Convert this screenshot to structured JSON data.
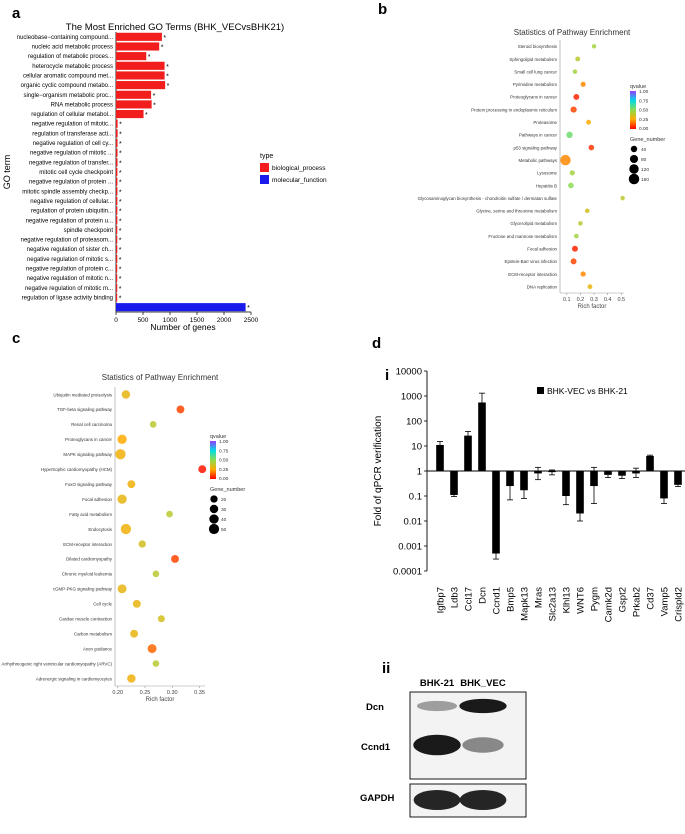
{
  "panel_labels": {
    "a": "a",
    "b": "b",
    "c": "c",
    "d": "d",
    "i": "i",
    "ii": "ii"
  },
  "chart_data": [
    {
      "id": "go",
      "type": "bar",
      "title": "The Most Enriched GO Terms (BHK_VECvsBHK21)",
      "xlabel": "Number of genes",
      "ylabel": "GO term",
      "xlim": [
        0,
        2500
      ],
      "xticks": [
        "0",
        "500",
        "1000",
        "1500",
        "2000",
        "2500"
      ],
      "legend": {
        "title": "type",
        "entries": [
          {
            "name": "biological_process",
            "color": "#f21d1d"
          },
          {
            "name": "molecular_function",
            "color": "#1a1aeb"
          }
        ]
      },
      "categories": [
        "nucleobase−containing compound...",
        "nucleic acid metabolic process",
        "regulation of metabolic proces...",
        "heterocycle metabolic process",
        "cellular aromatic compound met...",
        "organic cyclic compound metabo...",
        "single−organism metabolic proc...",
        "RNA metabolic process",
        "regulation of cellular metabol...",
        "negative regulation of mitotic...",
        "regulation of transferase acti...",
        "negative regulation of cell cy...",
        "negative regulation of mitotic ...",
        "negative regulation of transfer...",
        "mitotic cell cycle checkpoint",
        "negative regulation of protein ...",
        "mitotic spindle assembly checkp...",
        "negative regulation of cellular...",
        "regulation of protein ubiquitin...",
        "negative regulation of protein u...",
        "spindle checkpoint",
        "negative regulation of proteasom...",
        "negative regulation of sister ch...",
        "negative regulation of mitotic s...",
        "negative regulation of protein c...",
        "negative regulation of mitotic n...",
        "negative regulation of mitotic m...",
        "regulation of ligase activity binding"
      ],
      "values": [
        850,
        800,
        560,
        900,
        900,
        910,
        650,
        660,
        510,
        30,
        30,
        28,
        28,
        28,
        26,
        26,
        26,
        25,
        25,
        25,
        24,
        24,
        24,
        24,
        23,
        23,
        23,
        22
      ],
      "mf_value": 2400,
      "star": "*"
    },
    {
      "id": "pathway_b",
      "type": "scatter",
      "title": "Statistics of Pathway Enrichment",
      "xlabel": "Rich factor",
      "xlim": [
        0.05,
        0.52
      ],
      "xticks": [
        {
          "v": 0.1,
          "l": "0.1"
        },
        {
          "v": 0.2,
          "l": "0.2"
        },
        {
          "v": 0.3,
          "l": "0.3"
        },
        {
          "v": 0.4,
          "l": "0.4"
        },
        {
          "v": 0.5,
          "l": "0.5"
        }
      ],
      "qvalue_title": "qvalue",
      "qvalue_ticks": [
        "1.00",
        "0.75",
        "0.50",
        "0.25",
        "0.00"
      ],
      "size_title": "Gene_number",
      "size_ticks": [
        "40",
        "80",
        "120",
        "160"
      ],
      "categories": [
        "Steroid biosynthesis",
        "Sphingolipid metabolism",
        "Small cell lung cancer",
        "Pyrimidine metabolism",
        "Proteoglycans in cancer",
        "Protein processing in endoplasmic reticulum",
        "Proteasome",
        "Pathways in cancer",
        "p53 signaling pathway",
        "Metabolic pathways",
        "Lysosome",
        "Hepatitis B",
        "Glycosaminoglycan biosynthesis - chondroitin sulfate / dermatan sulfate",
        "Glycine, serine and threonine metabolism",
        "Glycerolipid metabolism",
        "Fructose and mannose metabolism",
        "Focal adhesion",
        "Epstein-Barr virus infection",
        "ECM-receptor interaction",
        "DNA replication"
      ],
      "points": [
        {
          "x": 0.3,
          "q": 0.45,
          "size": 10
        },
        {
          "x": 0.18,
          "q": 0.4,
          "size": 15
        },
        {
          "x": 0.16,
          "q": 0.45,
          "size": 12
        },
        {
          "x": 0.22,
          "q": 0.2,
          "size": 18
        },
        {
          "x": 0.17,
          "q": 0.05,
          "size": 30
        },
        {
          "x": 0.15,
          "q": 0.1,
          "size": 35
        },
        {
          "x": 0.26,
          "q": 0.25,
          "size": 15
        },
        {
          "x": 0.12,
          "q": 0.55,
          "size": 40
        },
        {
          "x": 0.28,
          "q": 0.08,
          "size": 25
        },
        {
          "x": 0.09,
          "q": 0.2,
          "size": 160
        },
        {
          "x": 0.14,
          "q": 0.45,
          "size": 20
        },
        {
          "x": 0.13,
          "q": 0.5,
          "size": 25
        },
        {
          "x": 0.51,
          "q": 0.4,
          "size": 10
        },
        {
          "x": 0.25,
          "q": 0.35,
          "size": 12
        },
        {
          "x": 0.2,
          "q": 0.4,
          "size": 12
        },
        {
          "x": 0.17,
          "q": 0.45,
          "size": 12
        },
        {
          "x": 0.16,
          "q": 0.05,
          "size": 30
        },
        {
          "x": 0.15,
          "q": 0.1,
          "size": 30
        },
        {
          "x": 0.22,
          "q": 0.2,
          "size": 20
        },
        {
          "x": 0.27,
          "q": 0.3,
          "size": 15
        }
      ]
    },
    {
      "id": "pathway_c",
      "type": "scatter",
      "title": "Statistics of Pathway Enrichment",
      "xlabel": "Rich factor",
      "xlim": [
        0.195,
        0.36
      ],
      "xticks": [
        {
          "v": 0.2,
          "l": "0.20"
        },
        {
          "v": 0.25,
          "l": "0.25"
        },
        {
          "v": 0.3,
          "l": "0.30"
        },
        {
          "v": 0.35,
          "l": "0.35"
        }
      ],
      "qvalue_title": "qvalue",
      "qvalue_ticks": [
        "1.00",
        "0.75",
        "0.50",
        "0.25",
        "0.00"
      ],
      "size_title": "Gene_number",
      "size_ticks": [
        "20",
        "30",
        "40",
        "50"
      ],
      "categories": [
        "Ubiquitin mediated proteolysis",
        "TGF-beta signaling pathway",
        "Renal cell carcinoma",
        "Proteoglycans in cancer",
        "MAPK signaling pathway",
        "Hypertrophic cardiomyopathy (HCM)",
        "FoxO signaling pathway",
        "Focal adhesion",
        "Fatty acid metabolism",
        "Endocytosis",
        "ECM-receptor interaction",
        "Dilated cardiomyopathy",
        "Chronic myeloid leukemia",
        "cGMP-PKG signaling pathway",
        "Cell cycle",
        "Cardiac muscle contraction",
        "Carbon metabolism",
        "Axon guidance",
        "Arrhythmogenic right ventricular cardiomyopathy (ARVC)",
        "Adrenergic signaling in cardiomyocytes"
      ],
      "points": [
        {
          "x": 0.215,
          "q": 0.3,
          "size": 30
        },
        {
          "x": 0.315,
          "q": 0.1,
          "size": 25
        },
        {
          "x": 0.265,
          "q": 0.4,
          "size": 15
        },
        {
          "x": 0.208,
          "q": 0.25,
          "size": 40
        },
        {
          "x": 0.205,
          "q": 0.28,
          "size": 52
        },
        {
          "x": 0.355,
          "q": 0.03,
          "size": 25
        },
        {
          "x": 0.225,
          "q": 0.28,
          "size": 25
        },
        {
          "x": 0.208,
          "q": 0.3,
          "size": 40
        },
        {
          "x": 0.295,
          "q": 0.4,
          "size": 15
        },
        {
          "x": 0.215,
          "q": 0.28,
          "size": 52
        },
        {
          "x": 0.245,
          "q": 0.35,
          "size": 20
        },
        {
          "x": 0.305,
          "q": 0.1,
          "size": 25
        },
        {
          "x": 0.27,
          "q": 0.4,
          "size": 15
        },
        {
          "x": 0.208,
          "q": 0.3,
          "size": 35
        },
        {
          "x": 0.235,
          "q": 0.3,
          "size": 25
        },
        {
          "x": 0.28,
          "q": 0.35,
          "size": 18
        },
        {
          "x": 0.23,
          "q": 0.3,
          "size": 25
        },
        {
          "x": 0.263,
          "q": 0.15,
          "size": 35
        },
        {
          "x": 0.27,
          "q": 0.4,
          "size": 15
        },
        {
          "x": 0.225,
          "q": 0.28,
          "size": 30
        }
      ]
    },
    {
      "id": "qpcr",
      "type": "bar",
      "yscale": "log",
      "ylabel": "Fold of qPCR verification",
      "legend": "BHK-VEC vs BHK-21",
      "yticks": [
        "10000",
        "1000",
        "100",
        "10",
        "1",
        "0.1",
        "0.01",
        "0.001",
        "0.0001"
      ],
      "categories": [
        "Igfbp7",
        "Ldb3",
        "Ccl17",
        "Dcn",
        "Ccnd1",
        "Bmp5",
        "Mapk13",
        "Mras",
        "Slc2a13",
        "Klhl13",
        "WNT6",
        "Pygm",
        "Camk2d",
        "Gspt2",
        "Prkab2",
        "Cd37",
        "Vamp5",
        "Crispld2"
      ],
      "values": [
        11,
        0.11,
        26,
        550,
        0.0005,
        0.25,
        0.17,
        0.8,
        0.9,
        0.1,
        0.02,
        0.25,
        0.7,
        0.65,
        0.8,
        4,
        0.08,
        0.28
      ],
      "err_high": [
        15,
        0.13,
        38,
        1300,
        0.0013,
        0.42,
        0.35,
        1.4,
        1.1,
        0.22,
        0.07,
        1.4,
        0.85,
        0.8,
        1.3,
        4.3,
        0.15,
        0.32
      ],
      "err_low": [
        8,
        0.095,
        18,
        220,
        0.0003,
        0.07,
        0.08,
        0.45,
        0.7,
        0.045,
        0.01,
        0.05,
        0.55,
        0.5,
        0.55,
        3.7,
        0.05,
        0.24
      ]
    }
  ],
  "western_blot": {
    "columns": [
      "BHK-21",
      "BHK_VEC"
    ],
    "rows": [
      "Dcn",
      "Ccnd1",
      "GAPDH"
    ],
    "band_intensity": [
      [
        0.35,
        0.95
      ],
      [
        0.95,
        0.45
      ],
      [
        0.9,
        0.9
      ]
    ]
  }
}
